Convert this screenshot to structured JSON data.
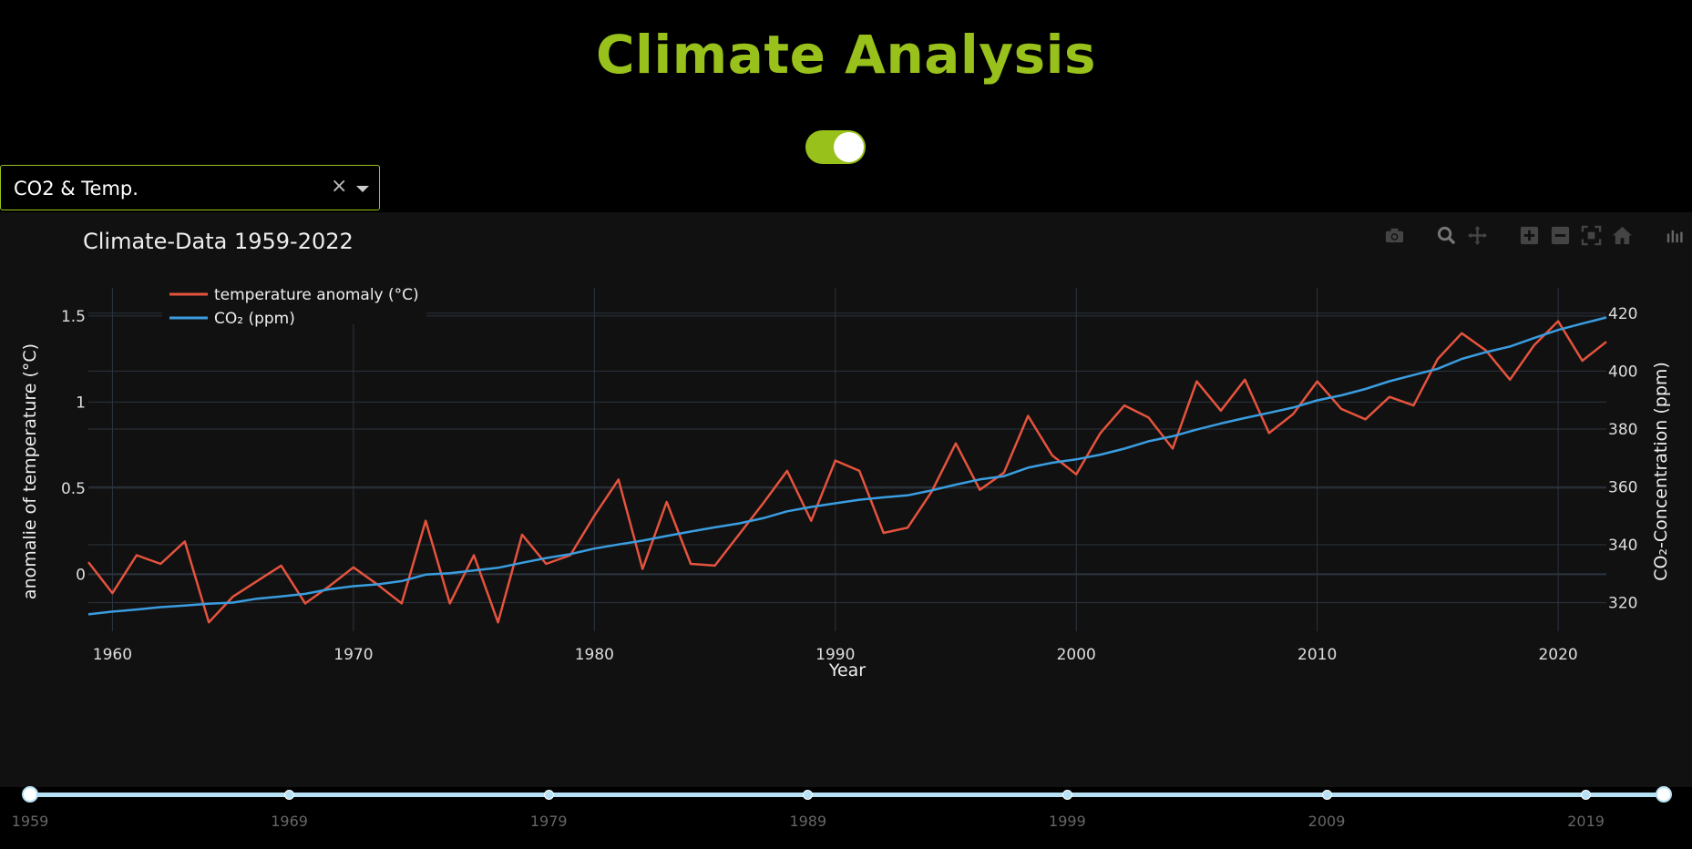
{
  "app": {
    "title": "Climate Analysis"
  },
  "toggle": {
    "on": true
  },
  "dropdown": {
    "value": "CO2 & Temp.",
    "clear_label": "×"
  },
  "modebar": {
    "icons": [
      "camera-icon",
      "zoom-icon",
      "pan-icon",
      "zoom-in-icon",
      "zoom-out-icon",
      "autoscale-icon",
      "reset-axes-icon",
      "plotly-logo-icon"
    ]
  },
  "slider": {
    "min": 1959,
    "max": 2022,
    "range": [
      1959,
      2022
    ],
    "marks": [
      "1959",
      "1969",
      "1979",
      "1989",
      "1999",
      "2009",
      "2019"
    ]
  },
  "colors": {
    "accent": "#98c11b",
    "temperature": "#e5533d",
    "co2": "#3a9de0",
    "background": "#111111",
    "grid": "#2c3540"
  },
  "chart_data": {
    "type": "line",
    "title": "Climate-Data 1959-2022",
    "xlabel": "Year",
    "ylabel": "anomalie of temperature (°C)",
    "y2label": "CO₂-Concentration (ppm)",
    "xlim": [
      1959,
      2022
    ],
    "ylim": [
      -0.3,
      1.6
    ],
    "y2lim": [
      312,
      425
    ],
    "xticks": [
      1960,
      1970,
      1980,
      1990,
      2000,
      2010,
      2020
    ],
    "yticks": [
      0,
      0.5,
      1,
      1.5
    ],
    "yticklabels": [
      "0",
      "0.5",
      "1",
      "1.5"
    ],
    "y2ticks": [
      320,
      340,
      360,
      380,
      400,
      420
    ],
    "legend_position": "top-left",
    "grid": true,
    "x": [
      1959,
      1960,
      1961,
      1962,
      1963,
      1964,
      1965,
      1966,
      1967,
      1968,
      1969,
      1970,
      1971,
      1972,
      1973,
      1974,
      1975,
      1976,
      1977,
      1978,
      1979,
      1980,
      1981,
      1982,
      1983,
      1984,
      1985,
      1986,
      1987,
      1988,
      1989,
      1990,
      1991,
      1992,
      1993,
      1994,
      1995,
      1996,
      1997,
      1998,
      1999,
      2000,
      2001,
      2002,
      2003,
      2004,
      2005,
      2006,
      2007,
      2008,
      2009,
      2010,
      2011,
      2012,
      2013,
      2014,
      2015,
      2016,
      2017,
      2018,
      2019,
      2020,
      2021,
      2022
    ],
    "series": [
      {
        "name": "temperature anomaly (°C)",
        "axis": "y",
        "color": "#e5533d",
        "values": [
          0.07,
          -0.11,
          0.11,
          0.06,
          0.19,
          -0.28,
          -0.13,
          -0.04,
          0.05,
          -0.17,
          -0.07,
          0.04,
          -0.06,
          -0.17,
          0.31,
          -0.17,
          0.11,
          -0.28,
          0.23,
          0.06,
          0.11,
          0.34,
          0.55,
          0.03,
          0.42,
          0.06,
          0.05,
          0.23,
          0.41,
          0.6,
          0.31,
          0.66,
          0.6,
          0.24,
          0.27,
          0.48,
          0.76,
          0.49,
          0.59,
          0.92,
          0.69,
          0.58,
          0.82,
          0.98,
          0.91,
          0.73,
          1.12,
          0.95,
          1.13,
          0.82,
          0.93,
          1.12,
          0.96,
          0.9,
          1.03,
          0.98,
          1.25,
          1.4,
          1.3,
          1.13,
          1.33,
          1.47,
          1.24,
          1.35
        ]
      },
      {
        "name": "CO₂ (ppm)",
        "axis": "y2",
        "color": "#3a9de0",
        "values": [
          315.98,
          316.91,
          317.64,
          318.45,
          318.99,
          319.62,
          320.04,
          321.37,
          322.18,
          323.05,
          324.62,
          325.68,
          326.32,
          327.46,
          329.68,
          330.19,
          331.13,
          332.05,
          333.78,
          335.41,
          336.78,
          338.68,
          340.1,
          341.44,
          343.03,
          344.58,
          346.04,
          347.39,
          349.16,
          351.56,
          353.07,
          354.35,
          355.57,
          356.38,
          357.07,
          358.82,
          360.8,
          362.59,
          363.71,
          366.65,
          368.33,
          369.52,
          371.13,
          373.22,
          375.77,
          377.49,
          379.8,
          381.9,
          383.79,
          385.6,
          387.43,
          389.9,
          391.65,
          393.85,
          396.52,
          398.65,
          400.83,
          404.24,
          406.55,
          408.52,
          411.43,
          414.24,
          416.45,
          418.56
        ]
      }
    ]
  }
}
